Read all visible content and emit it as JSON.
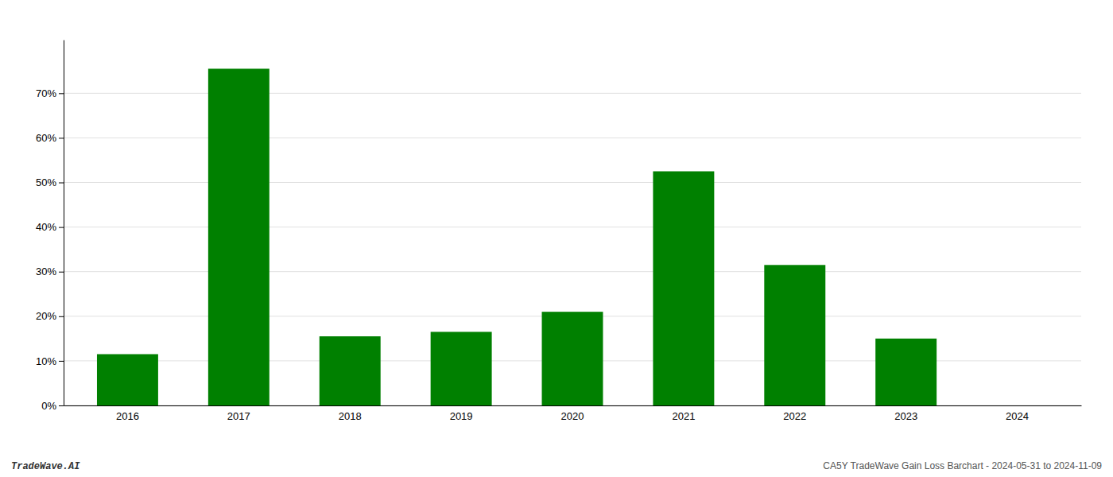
{
  "chart_data": {
    "type": "bar",
    "categories": [
      "2016",
      "2017",
      "2018",
      "2019",
      "2020",
      "2021",
      "2022",
      "2023",
      "2024"
    ],
    "values": [
      11.5,
      75.5,
      15.5,
      16.5,
      21.0,
      52.5,
      31.5,
      15.0,
      0.0
    ],
    "color": "#008000",
    "ylim": [
      0,
      82
    ],
    "yticks": [
      {
        "value": 0,
        "label": "0%"
      },
      {
        "value": 10,
        "label": "10%"
      },
      {
        "value": 20,
        "label": "20%"
      },
      {
        "value": 30,
        "label": "30%"
      },
      {
        "value": 40,
        "label": "40%"
      },
      {
        "value": 50,
        "label": "50%"
      },
      {
        "value": 60,
        "label": "60%"
      },
      {
        "value": 70,
        "label": "70%"
      }
    ],
    "grid": true,
    "annotations": [
      "TradeWave.AI",
      "CA5Y TradeWave Gain Loss Barchart - 2024-05-31 to 2024-11-09"
    ]
  }
}
